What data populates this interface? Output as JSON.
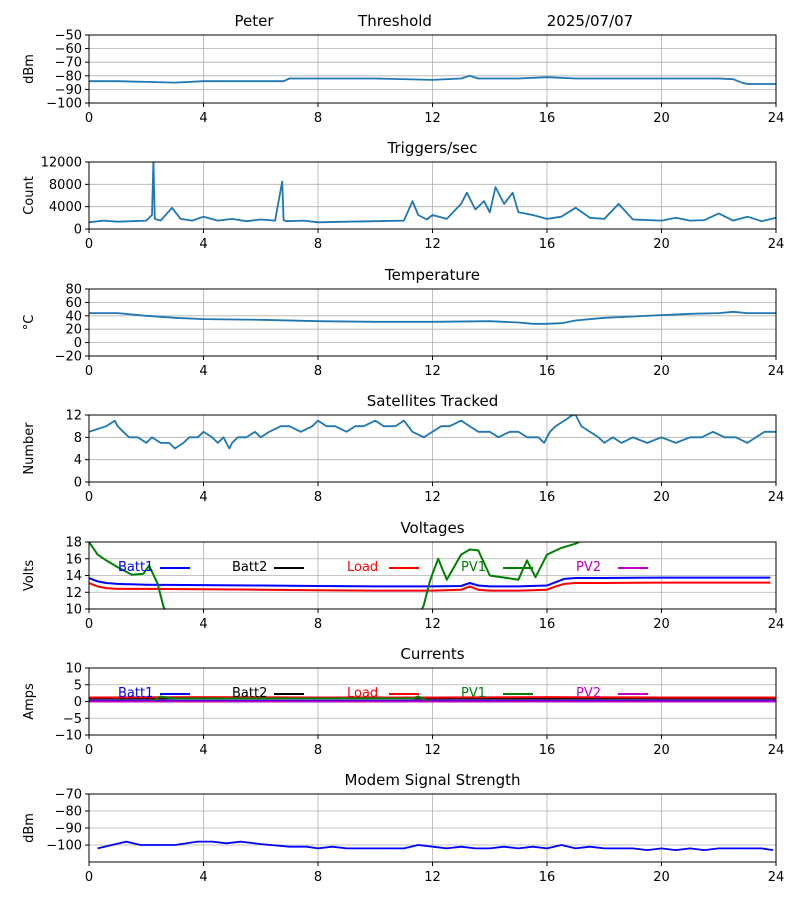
{
  "header": {
    "station": "Peter",
    "mode": "Threshold",
    "date": "2025/07/07"
  },
  "chart_data": [
    {
      "type": "line",
      "title": "",
      "xlabel": "",
      "ylabel": "dBm",
      "xlim": [
        0,
        24
      ],
      "ylim": [
        -100,
        -50
      ],
      "xticks": [
        0,
        4,
        8,
        12,
        16,
        20,
        24
      ],
      "yticks": [
        -100,
        -90,
        -80,
        -70,
        -60,
        -50
      ],
      "grid": true,
      "series": [
        {
          "color": "#1f77b4",
          "x": [
            0,
            1,
            2,
            3,
            4,
            5,
            6,
            6.8,
            7,
            8,
            10,
            12,
            13,
            13.3,
            13.6,
            14,
            15,
            16,
            17,
            18,
            19,
            20,
            21,
            22,
            22.5,
            22.8,
            23,
            24
          ],
          "y": [
            -84,
            -84,
            -84.5,
            -85,
            -84,
            -84,
            -84,
            -84,
            -82,
            -82,
            -82,
            -83,
            -82,
            -80,
            -82,
            -82,
            -82,
            -81,
            -82,
            -82,
            -82,
            -82,
            -82,
            -82,
            -82.5,
            -85,
            -86,
            -86
          ]
        }
      ]
    },
    {
      "type": "line",
      "title": "Triggers/sec",
      "xlabel": "",
      "ylabel": "Count",
      "xlim": [
        0,
        24
      ],
      "ylim": [
        0,
        12000
      ],
      "xticks": [
        0,
        4,
        8,
        12,
        16,
        20,
        24
      ],
      "yticks": [
        0,
        4000,
        8000,
        12000
      ],
      "grid": true,
      "series": [
        {
          "color": "#1f77b4",
          "x": [
            0,
            0.5,
            1,
            1.5,
            2.0,
            2.2,
            2.25,
            2.3,
            2.5,
            2.9,
            3.2,
            3.6,
            4,
            4.5,
            5,
            5.5,
            6,
            6.5,
            6.75,
            6.8,
            6.9,
            7.5,
            8,
            9,
            10,
            11,
            11.3,
            11.5,
            11.8,
            12,
            12.5,
            13,
            13.2,
            13.5,
            13.8,
            14,
            14.2,
            14.5,
            14.8,
            15,
            15.5,
            16,
            16.5,
            17,
            17.5,
            18,
            18.5,
            19,
            20,
            20.5,
            21,
            21.5,
            22,
            22.5,
            23,
            23.5,
            24
          ],
          "y": [
            1200,
            1500,
            1300,
            1400,
            1500,
            2500,
            12200,
            1800,
            1500,
            3800,
            1800,
            1500,
            2200,
            1500,
            1800,
            1400,
            1700,
            1500,
            8500,
            1600,
            1400,
            1500,
            1200,
            1300,
            1400,
            1500,
            5000,
            2500,
            1700,
            2500,
            1800,
            4500,
            6500,
            3500,
            5000,
            3000,
            7500,
            4500,
            6500,
            3000,
            2500,
            1800,
            2200,
            3800,
            2000,
            1800,
            4500,
            1700,
            1500,
            2000,
            1500,
            1600,
            2800,
            1500,
            2200,
            1400,
            2000
          ]
        }
      ]
    },
    {
      "type": "line",
      "title": "Temperature",
      "xlabel": "",
      "ylabel": "°C",
      "xlim": [
        0,
        24
      ],
      "ylim": [
        -20,
        80
      ],
      "xticks": [
        0,
        4,
        8,
        12,
        16,
        20,
        24
      ],
      "yticks": [
        -20,
        0,
        20,
        40,
        60,
        80
      ],
      "grid": true,
      "series": [
        {
          "color": "#1f77b4",
          "x": [
            0,
            1,
            2,
            3,
            4,
            6,
            8,
            10,
            12,
            14,
            15,
            15.5,
            16,
            16.5,
            17,
            18,
            19,
            20,
            21,
            22,
            22.5,
            23,
            24
          ],
          "y": [
            44,
            44,
            40,
            37,
            35,
            34,
            32,
            31,
            31,
            32,
            30,
            28,
            28,
            29,
            33,
            37,
            39,
            41,
            43,
            44,
            46,
            44,
            44
          ]
        }
      ]
    },
    {
      "type": "line",
      "title": "Satellites Tracked",
      "xlabel": "",
      "ylabel": "Number",
      "xlim": [
        0,
        24
      ],
      "ylim": [
        0,
        12
      ],
      "xticks": [
        0,
        4,
        8,
        12,
        16,
        20,
        24
      ],
      "yticks": [
        0,
        4,
        8,
        12
      ],
      "grid": true,
      "series": [
        {
          "color": "#1f77b4",
          "x": [
            0,
            0.6,
            0.9,
            1.0,
            1.2,
            1.4,
            1.7,
            2.0,
            2.2,
            2.5,
            2.8,
            3.0,
            3.3,
            3.5,
            3.8,
            4.0,
            4.3,
            4.5,
            4.7,
            4.9,
            5.0,
            5.2,
            5.5,
            5.8,
            6.0,
            6.3,
            6.7,
            7.0,
            7.4,
            7.8,
            8.0,
            8.3,
            8.6,
            9.0,
            9.3,
            9.6,
            10.0,
            10.3,
            10.7,
            11.0,
            11.3,
            11.7,
            12.0,
            12.3,
            12.6,
            13.0,
            13.3,
            13.6,
            14.0,
            14.3,
            14.7,
            15.0,
            15.3,
            15.7,
            15.9,
            16.1,
            16.3,
            16.6,
            16.9,
            17.0,
            17.2,
            17.5,
            17.8,
            18.0,
            18.3,
            18.6,
            19.0,
            19.5,
            20.0,
            20.5,
            21.0,
            21.4,
            21.8,
            22.2,
            22.6,
            23.0,
            23.3,
            23.6,
            24.0
          ],
          "y": [
            9,
            10,
            11,
            10,
            9,
            8,
            8,
            7,
            8,
            7,
            7,
            6,
            7,
            8,
            8,
            9,
            8,
            7,
            8,
            6,
            7,
            8,
            8,
            9,
            8,
            9,
            10,
            10,
            9,
            10,
            11,
            10,
            10,
            9,
            10,
            10,
            11,
            10,
            10,
            11,
            9,
            8,
            9,
            10,
            10,
            11,
            10,
            9,
            9,
            8,
            9,
            9,
            8,
            8,
            7,
            9,
            10,
            11,
            12,
            12,
            10,
            9,
            8,
            7,
            8,
            7,
            8,
            7,
            8,
            7,
            8,
            8,
            9,
            8,
            8,
            7,
            8,
            9,
            9
          ]
        }
      ]
    },
    {
      "type": "line",
      "title": "Voltages",
      "xlabel": "",
      "ylabel": "Volts",
      "xlim": [
        0,
        24
      ],
      "ylim": [
        10,
        18
      ],
      "xticks": [
        0,
        4,
        8,
        12,
        16,
        20,
        24
      ],
      "yticks": [
        10,
        12,
        14,
        16,
        18
      ],
      "grid": true,
      "legend": "top",
      "series": [
        {
          "name": "Batt1",
          "color": "#0000ff",
          "x": [
            0,
            0.3,
            0.6,
            1.0,
            2.0,
            4.0,
            6.0,
            8.0,
            10.0,
            12.0,
            13.0,
            13.3,
            13.6,
            14.0,
            15.0,
            16.0,
            16.3,
            16.6,
            17.0,
            18.0,
            20.0,
            22.0,
            23.8
          ],
          "y": [
            13.7,
            13.3,
            13.1,
            13.0,
            12.9,
            12.85,
            12.8,
            12.75,
            12.7,
            12.7,
            12.75,
            13.1,
            12.8,
            12.7,
            12.7,
            12.8,
            13.2,
            13.6,
            13.7,
            13.7,
            13.75,
            13.75,
            13.75
          ]
        },
        {
          "name": "Batt2",
          "color": "#000000",
          "x": [],
          "y": []
        },
        {
          "name": "Load",
          "color": "#ff0000",
          "x": [
            0,
            0.3,
            0.6,
            1.0,
            2.0,
            4.0,
            6.0,
            8.0,
            10.0,
            12.0,
            13.0,
            13.3,
            13.6,
            14.0,
            15.0,
            16.0,
            16.3,
            16.6,
            17.0,
            18.0,
            20.0,
            22.0,
            23.8
          ],
          "y": [
            13.1,
            12.7,
            12.5,
            12.4,
            12.4,
            12.35,
            12.3,
            12.25,
            12.2,
            12.2,
            12.3,
            12.7,
            12.3,
            12.2,
            12.2,
            12.3,
            12.7,
            13.0,
            13.1,
            13.1,
            13.15,
            13.15,
            13.15
          ]
        },
        {
          "name": "PV1",
          "color": "#008000",
          "x": [
            0,
            0.3,
            0.6,
            1.0,
            1.5,
            1.9,
            2.1,
            2.4,
            2.6,
            2.8,
            11.5,
            11.7,
            11.9,
            12.0,
            12.2,
            12.5,
            13.0,
            13.3,
            13.6,
            14.0,
            15.0,
            15.3,
            15.6,
            16.0,
            16.5,
            17.0,
            17.3
          ],
          "y": [
            18,
            16.5,
            15.8,
            15.0,
            14.1,
            14.2,
            15.2,
            13.0,
            10.3,
            9.0,
            9.0,
            10.5,
            13.2,
            14.2,
            16.0,
            13.5,
            16.5,
            17.1,
            17.0,
            14.0,
            13.5,
            15.8,
            13.8,
            16.5,
            17.3,
            17.8,
            18.3
          ]
        },
        {
          "name": "PV2",
          "color": "#bf00bf",
          "x": [],
          "y": []
        }
      ]
    },
    {
      "type": "line",
      "title": "Currents",
      "xlabel": "",
      "ylabel": "Amps",
      "xlim": [
        0,
        24
      ],
      "ylim": [
        -10,
        10
      ],
      "xticks": [
        0,
        4,
        8,
        12,
        16,
        20,
        24
      ],
      "yticks": [
        -10,
        -5,
        0,
        5,
        10
      ],
      "grid": true,
      "legend": "top",
      "series": [
        {
          "name": "Batt1",
          "color": "#0000ff",
          "x": [
            0,
            24
          ],
          "y": [
            0.2,
            0.2
          ]
        },
        {
          "name": "Batt2",
          "color": "#000000",
          "x": [
            0,
            24
          ],
          "y": [
            0.9,
            0.9
          ]
        },
        {
          "name": "Load",
          "color": "#ff0000",
          "x": [
            0,
            4,
            8,
            12,
            16,
            20,
            24
          ],
          "y": [
            1.2,
            1.3,
            1.2,
            1.2,
            1.3,
            1.2,
            1.2
          ]
        },
        {
          "name": "PV1",
          "color": "#008000",
          "x": [
            0,
            2.2,
            2.5,
            2.8,
            3.0,
            11.0,
            11.3,
            11.5,
            11.8,
            12.0,
            24.0
          ],
          "y": [
            0,
            0,
            1.5,
            1.0,
            0.9,
            0.9,
            0.9,
            1.5,
            0.3,
            0,
            0
          ]
        },
        {
          "name": "PV2",
          "color": "#bf00bf",
          "x": [
            0,
            24
          ],
          "y": [
            0,
            0
          ]
        }
      ]
    },
    {
      "type": "line",
      "title": "Modem Signal Strength",
      "xlabel": "",
      "ylabel": "dBm",
      "xlim": [
        0,
        24
      ],
      "ylim": [
        -110,
        -70
      ],
      "xticks": [
        0,
        4,
        8,
        12,
        16,
        20,
        24
      ],
      "yticks": [
        -100,
        -90,
        -80,
        -70
      ],
      "grid": true,
      "series": [
        {
          "color": "#0000ff",
          "x": [
            0.3,
            1.3,
            1.8,
            2.5,
            3.0,
            3.8,
            4.3,
            4.8,
            5.3,
            6.0,
            7.0,
            7.6,
            8.0,
            8.5,
            9.0,
            10.0,
            11.0,
            11.5,
            12.0,
            12.5,
            13.0,
            13.5,
            14.0,
            14.5,
            15.0,
            15.5,
            16.0,
            16.5,
            17.0,
            17.5,
            18.0,
            19.0,
            19.5,
            20.0,
            20.5,
            21.0,
            21.5,
            22.0,
            23.0,
            23.5,
            23.9
          ],
          "y": [
            -102,
            -98,
            -100,
            -100,
            -100,
            -98,
            -98,
            -99,
            -98,
            -99.5,
            -101,
            -101,
            -102,
            -101,
            -102,
            -102,
            -102,
            -100,
            -101,
            -102,
            -101,
            -102,
            -102,
            -101,
            -102,
            -101,
            -102,
            -100,
            -102,
            -101,
            -102,
            -102,
            -103,
            -102,
            -103,
            -102,
            -103,
            -102,
            -102,
            -102,
            -103
          ]
        }
      ]
    }
  ]
}
